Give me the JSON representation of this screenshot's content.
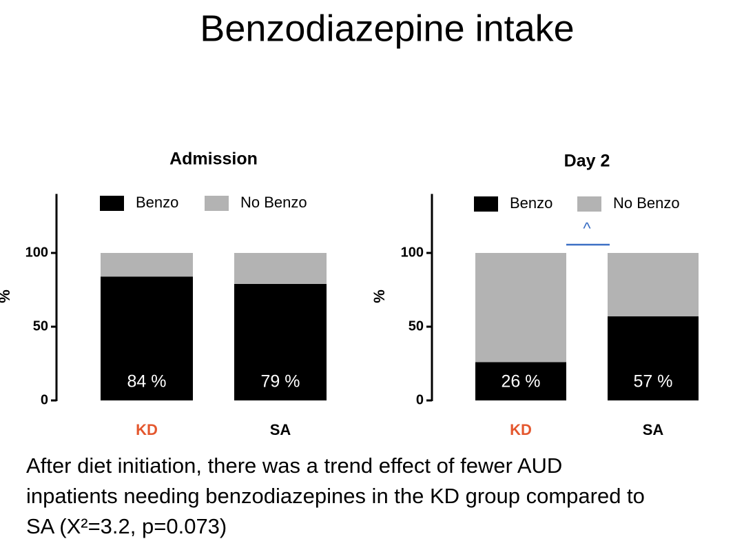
{
  "title": "Benzodiazepine intake",
  "caption": [
    "After diet initiation, there was a trend effect of fewer AUD",
    "inpatients needing benzodiazepines in the KD group compared to",
    "SA (X²=3.2, p=0.073)"
  ],
  "chart_data": [
    {
      "type": "stacked_bar",
      "title": "Admission",
      "ylabel": "%",
      "categories": [
        "KD",
        "SA"
      ],
      "category_colors": [
        "#e4572e",
        "#000000"
      ],
      "series": [
        {
          "name": "Benzo",
          "color": "#000000",
          "values": [
            84,
            79
          ],
          "value_labels": [
            "84 %",
            "79 %"
          ]
        },
        {
          "name": "No Benzo",
          "color": "#b3b3b3",
          "values": [
            16,
            21
          ]
        }
      ],
      "ylim": [
        0,
        140
      ],
      "yticks": [
        0,
        50,
        100
      ]
    },
    {
      "type": "stacked_bar",
      "title": "Day 2",
      "ylabel": "%",
      "categories": [
        "KD",
        "SA"
      ],
      "category_colors": [
        "#e4572e",
        "#000000"
      ],
      "series": [
        {
          "name": "Benzo",
          "color": "#000000",
          "values": [
            26,
            57
          ],
          "value_labels": [
            "26 %",
            "57 %"
          ]
        },
        {
          "name": "No Benzo",
          "color": "#b3b3b3",
          "values": [
            74,
            43
          ]
        }
      ],
      "ylim": [
        0,
        140
      ],
      "yticks": [
        0,
        50,
        100
      ],
      "annotation": "^"
    }
  ]
}
